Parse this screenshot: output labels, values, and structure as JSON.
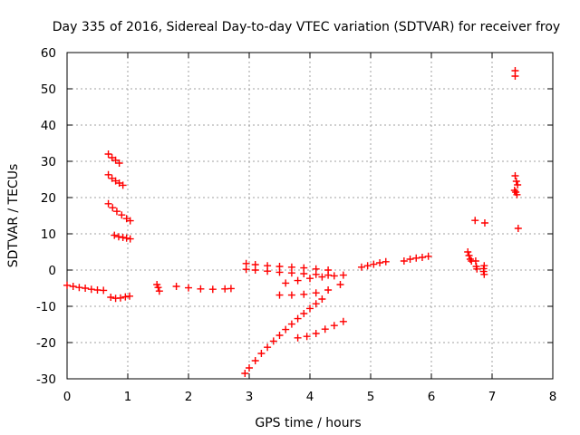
{
  "chart_data": {
    "type": "scatter",
    "title": "Day 335 of 2016, Sidereal Day-to-day VTEC variation (SDTVAR) for receiver froy",
    "xlabel": "GPS time / hours",
    "ylabel": "SDTVAR / TECUs",
    "xlim": [
      0,
      8
    ],
    "ylim": [
      -30,
      60
    ],
    "xticks": [
      0,
      1,
      2,
      3,
      4,
      5,
      6,
      7,
      8
    ],
    "yticks": [
      -30,
      -20,
      -10,
      0,
      10,
      20,
      30,
      40,
      50,
      60
    ],
    "grid": true,
    "marker": "+",
    "color": "#ff0000",
    "series": [
      {
        "name": "seg-early-low",
        "x": [
          0.0,
          0.1,
          0.2,
          0.3,
          0.4,
          0.5,
          0.6
        ],
        "y": [
          -4.2,
          -4.5,
          -4.8,
          -5.0,
          -5.3,
          -5.5,
          -5.6
        ]
      },
      {
        "name": "seg-early-high1",
        "x": [
          0.68,
          0.74,
          0.8,
          0.86
        ],
        "y": [
          32.0,
          31.0,
          30.3,
          29.5
        ]
      },
      {
        "name": "seg-early-high2",
        "x": [
          0.68,
          0.74,
          0.8,
          0.86,
          0.92
        ],
        "y": [
          26.3,
          25.3,
          24.6,
          24.0,
          23.4
        ]
      },
      {
        "name": "seg-early-high3",
        "x": [
          0.68,
          0.75,
          0.82,
          0.9,
          0.98,
          1.04
        ],
        "y": [
          18.3,
          17.2,
          16.2,
          15.2,
          14.2,
          13.6
        ]
      },
      {
        "name": "seg-early-mid",
        "x": [
          0.78,
          0.85,
          0.92,
          0.98,
          1.04
        ],
        "y": [
          9.6,
          9.2,
          9.0,
          8.8,
          8.6
        ]
      },
      {
        "name": "seg-early-dip",
        "x": [
          0.72,
          0.8,
          0.88,
          0.96,
          1.03
        ],
        "y": [
          -7.5,
          -7.8,
          -7.7,
          -7.4,
          -7.2
        ]
      },
      {
        "name": "seg-1-5",
        "x": [
          1.48,
          1.5,
          1.52
        ],
        "y": [
          -4.0,
          -4.8,
          -5.8
        ]
      },
      {
        "name": "seg-2",
        "x": [
          1.8,
          2.0,
          2.2,
          2.4,
          2.6,
          2.7
        ],
        "y": [
          -4.5,
          -4.9,
          -5.2,
          -5.3,
          -5.2,
          -5.1
        ]
      },
      {
        "name": "seg-3-top",
        "x": [
          2.95,
          3.1,
          3.3,
          3.5,
          3.7,
          3.9,
          4.1,
          4.3
        ],
        "y": [
          1.8,
          1.5,
          1.2,
          1.0,
          0.8,
          0.6,
          0.3,
          0.0
        ]
      },
      {
        "name": "seg-3-band",
        "x": [
          2.95,
          3.1,
          3.3,
          3.5,
          3.7,
          3.9,
          4.1,
          4.3
        ],
        "y": [
          0.2,
          0.0,
          -0.3,
          -0.6,
          -0.8,
          -1.0,
          -1.2,
          -1.4
        ]
      },
      {
        "name": "seg-3-converge",
        "x": [
          3.6,
          3.8,
          4.0,
          4.2,
          4.4,
          4.55
        ],
        "y": [
          -3.6,
          -2.9,
          -2.3,
          -1.9,
          -1.6,
          -1.4
        ]
      },
      {
        "name": "seg-3-lower",
        "x": [
          3.5,
          3.7,
          3.9,
          4.1,
          4.3,
          4.5
        ],
        "y": [
          -6.9,
          -6.9,
          -6.7,
          -6.3,
          -5.5,
          -4.0
        ]
      },
      {
        "name": "seg-3-curve",
        "x": [
          2.93,
          3.0,
          3.1,
          3.2,
          3.3,
          3.4,
          3.5,
          3.6,
          3.7,
          3.8,
          3.9,
          4.0,
          4.1,
          4.2
        ],
        "y": [
          -28.5,
          -27.0,
          -25.0,
          -23.0,
          -21.3,
          -19.6,
          -18.0,
          -16.4,
          -14.9,
          -13.4,
          -12.0,
          -10.6,
          -9.3,
          -8.0
        ]
      },
      {
        "name": "seg-3-bottom",
        "x": [
          3.8,
          3.95,
          4.1,
          4.25,
          4.4,
          4.55
        ],
        "y": [
          -18.7,
          -18.3,
          -17.5,
          -16.3,
          -15.3,
          -14.2
        ]
      },
      {
        "name": "seg-5",
        "x": [
          4.85,
          4.95,
          5.05,
          5.15,
          5.25
        ],
        "y": [
          0.8,
          1.2,
          1.6,
          2.0,
          2.3
        ]
      },
      {
        "name": "seg-5-8",
        "x": [
          5.55,
          5.65,
          5.75,
          5.85,
          5.95
        ],
        "y": [
          2.5,
          3.0,
          3.3,
          3.5,
          3.8
        ]
      },
      {
        "name": "seg-6-6",
        "x": [
          6.6,
          6.62,
          6.64,
          6.66
        ],
        "y": [
          5.0,
          4.0,
          3.0,
          2.5
        ]
      },
      {
        "name": "seg-6-7",
        "x": [
          6.72,
          6.73,
          6.74,
          6.75
        ],
        "y": [
          13.7,
          2.5,
          1.0,
          0.3
        ]
      },
      {
        "name": "seg-6-9",
        "x": [
          6.88,
          6.87,
          6.86,
          6.86,
          6.87
        ],
        "y": [
          13.0,
          1.2,
          0.4,
          -0.4,
          -1.2
        ]
      },
      {
        "name": "seg-7-4",
        "x": [
          7.38,
          7.38,
          7.38,
          7.4,
          7.42,
          7.37,
          7.39,
          7.41,
          7.43
        ],
        "y": [
          55.0,
          53.5,
          26.0,
          24.5,
          23.5,
          22.0,
          21.5,
          20.8,
          11.5
        ]
      }
    ]
  }
}
